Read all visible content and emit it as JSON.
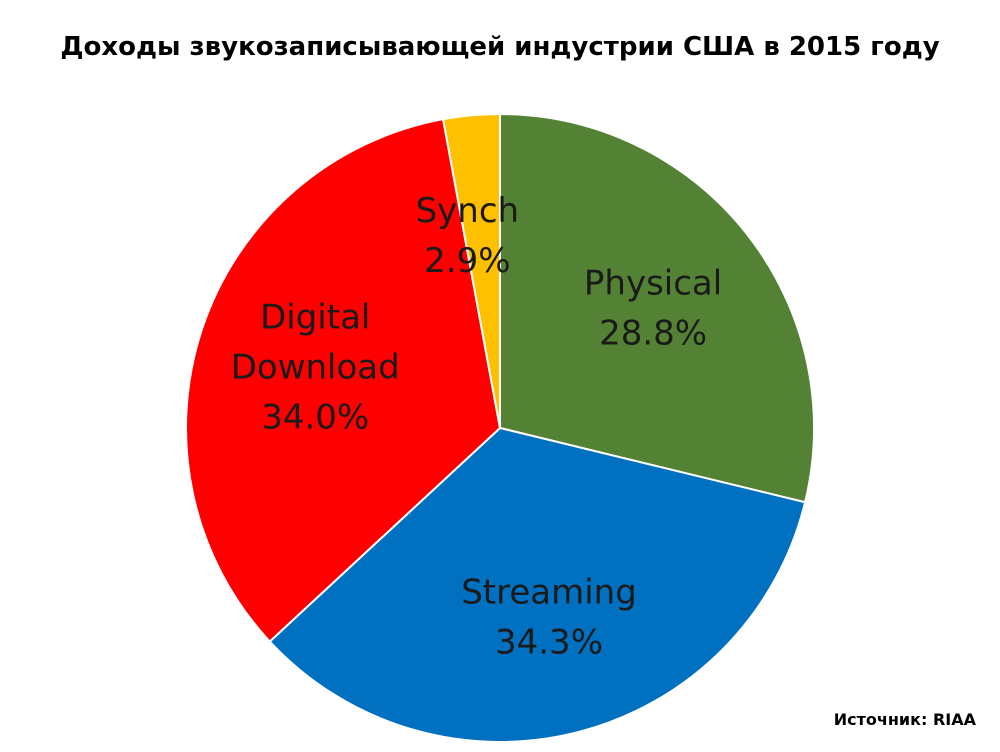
{
  "chart_data": {
    "type": "pie",
    "title": "Доходы звукозаписывающей индустрии США в 2015 году",
    "source": "Источник: RIAA",
    "slices": [
      {
        "label_lines": [
          "Physical"
        ],
        "value": 28.8,
        "value_label": "28.8%",
        "color": "#548235"
      },
      {
        "label_lines": [
          "Streaming"
        ],
        "value": 34.3,
        "value_label": "34.3%",
        "color": "#0070C0"
      },
      {
        "label_lines": [
          "Digital",
          "Download"
        ],
        "value": 34.0,
        "value_label": "34.0%",
        "color": "#FF0000"
      },
      {
        "label_lines": [
          "Synch"
        ],
        "value": 2.9,
        "value_label": "2.9%",
        "color": "#FFC000"
      }
    ]
  }
}
